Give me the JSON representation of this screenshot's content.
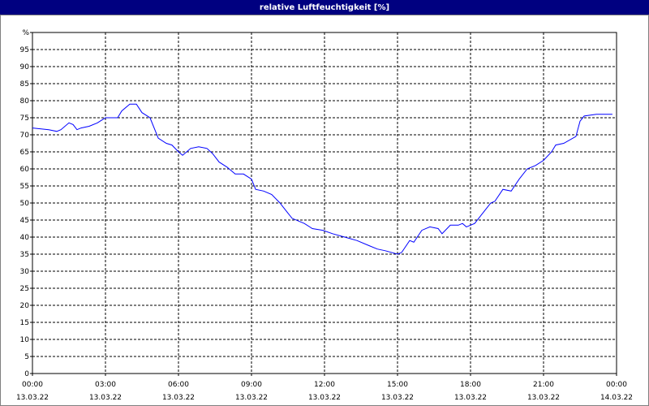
{
  "chart_data": {
    "type": "line",
    "title": "relative Luftfeuchtigkeit [%]",
    "x": [
      0,
      0.67,
      1,
      1.17,
      1.5,
      1.67,
      1.83,
      2,
      2.33,
      2.67,
      3,
      3.5,
      3.67,
      4,
      4.27,
      4.5,
      4.83,
      5.17,
      5.5,
      5.73,
      6,
      6.17,
      6.5,
      6.83,
      7.17,
      7.4,
      7.67,
      8,
      8.33,
      8.67,
      9,
      9.17,
      9.5,
      9.83,
      10.17,
      10.5,
      10.67,
      11.17,
      11.5,
      11.93,
      12.33,
      12.83,
      13.33,
      13.83,
      14.17,
      14.5,
      15,
      15.17,
      15.5,
      15.67,
      16,
      16.33,
      16.67,
      16.83,
      17.17,
      17.5,
      17.67,
      17.83,
      18.17,
      18.5,
      18.83,
      19,
      19.33,
      19.67,
      20,
      20.33,
      20.67,
      21,
      21.33,
      21.5,
      21.83,
      22.33,
      22.5,
      22.67,
      23.17,
      23.33,
      23.83
    ],
    "series": [
      {
        "name": "relative Luftfeuchtigkeit",
        "color": "#0000ff",
        "values": [
          72,
          71.5,
          71,
          71.5,
          73.5,
          73,
          71.5,
          72,
          72.5,
          73.5,
          75,
          75,
          77,
          79,
          79,
          76.5,
          75,
          69,
          67.5,
          67,
          65,
          64,
          66,
          66.5,
          66,
          64.5,
          62,
          60.5,
          58.5,
          58.5,
          57,
          54,
          53.5,
          52.5,
          50,
          47,
          45.5,
          44,
          42.5,
          42,
          41,
          40,
          39,
          37.5,
          36.5,
          36,
          35,
          35.5,
          39,
          38.5,
          42,
          43,
          42.5,
          41,
          43.5,
          43.5,
          44,
          43,
          44,
          47,
          50,
          50.5,
          54,
          53.5,
          57,
          60,
          61,
          62.5,
          65,
          67,
          67.5,
          69.5,
          74,
          75.5,
          76,
          76,
          76
        ]
      }
    ],
    "xlim": [
      0,
      24
    ],
    "xticks": [
      {
        "value": 0,
        "label": "00:00",
        "date": "13.03.22"
      },
      {
        "value": 3,
        "label": "03:00",
        "date": "13.03.22"
      },
      {
        "value": 6,
        "label": "06:00",
        "date": "13.03.22"
      },
      {
        "value": 9,
        "label": "09:00",
        "date": "13.03.22"
      },
      {
        "value": 12,
        "label": "12:00",
        "date": "13.03.22"
      },
      {
        "value": 15,
        "label": "15:00",
        "date": "13.03.22"
      },
      {
        "value": 18,
        "label": "18:00",
        "date": "13.03.22"
      },
      {
        "value": 21,
        "label": "21:00",
        "date": "13.03.22"
      },
      {
        "value": 24,
        "label": "00:00",
        "date": "14.03.22"
      }
    ],
    "ylim": [
      0,
      100
    ],
    "yticks": [
      0,
      5,
      10,
      15,
      20,
      25,
      30,
      35,
      40,
      45,
      50,
      55,
      60,
      65,
      70,
      75,
      80,
      85,
      90,
      95,
      {
        "value": 100,
        "label": "%"
      }
    ],
    "grid": true
  }
}
